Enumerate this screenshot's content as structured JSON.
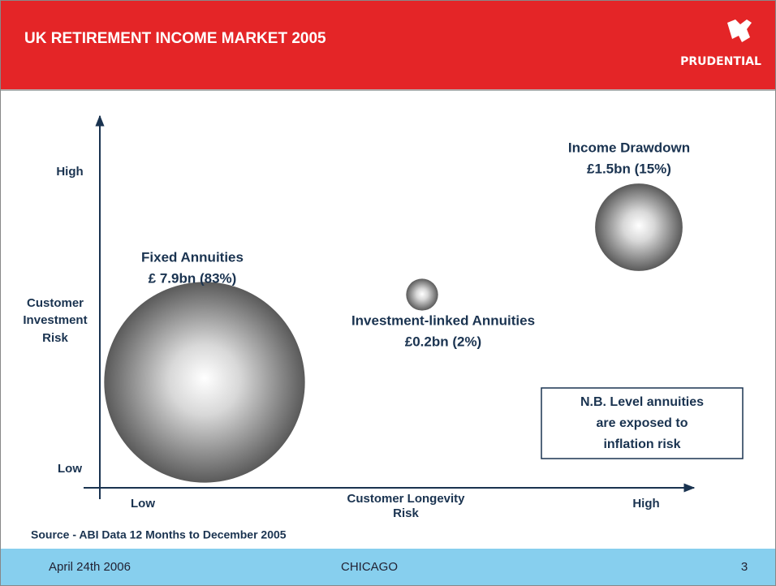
{
  "chart_data": {
    "type": "bubble",
    "title": "UK RETIREMENT INCOME MARKET 2005",
    "logo": "PRUDENTIAL",
    "x_label": [
      "Customer Longevity",
      "Risk"
    ],
    "y_label": [
      "Customer",
      "Investment",
      "Risk"
    ],
    "x_categories": [
      "Low",
      "High"
    ],
    "y_categories": [
      "Low",
      "High"
    ],
    "series": [
      {
        "name": "Fixed Annuities",
        "value_label": "£ 7.9bn (83%)",
        "size": 7.9
      },
      {
        "name": "Investment-linked Annuities",
        "value_label": "£0.2bn (2%)",
        "size": 0.2
      },
      {
        "name": "Income Drawdown",
        "value_label": "£1.5bn (15%)",
        "size": 1.5
      }
    ],
    "note": [
      "N.B. Level annuities",
      "are exposed to",
      "inflation risk"
    ],
    "source": "Source - ABI Data 12 Months to December 2005",
    "footer": {
      "date": "April 24th 2006",
      "location": "CHICAGO",
      "page": "3"
    }
  }
}
